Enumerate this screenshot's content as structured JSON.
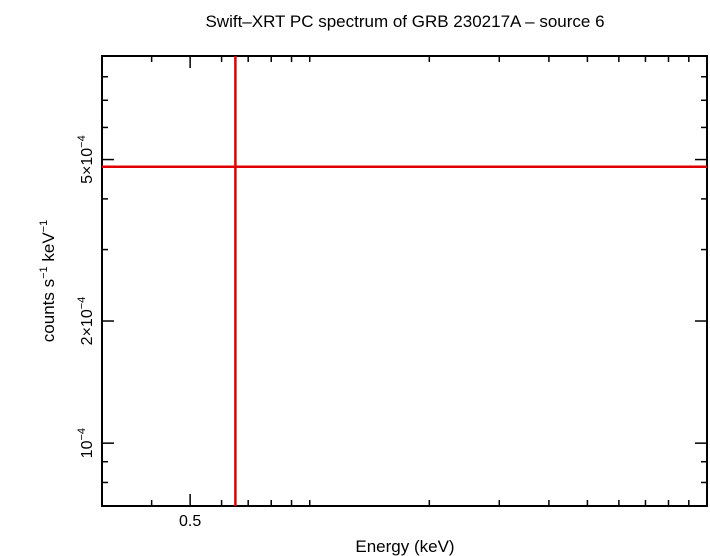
{
  "chart_data": {
    "type": "scatter",
    "title": "Swift–XRT PC spectrum of GRB 230217A – source 6",
    "xlabel": "Energy (keV)",
    "ylabel_main": "counts s",
    "ylabel_sup1": "−1",
    "ylabel_mid": " keV",
    "ylabel_sup2": "−1",
    "x_scale": "log",
    "y_scale": "log",
    "xlim": [
      0.3,
      10
    ],
    "ylim": [
      7e-05,
      0.0009
    ],
    "x_ticks": [
      {
        "value": 0.5,
        "label": "0.5"
      }
    ],
    "y_ticks": [
      {
        "value": 0.0001,
        "mant": "",
        "exp": "−4"
      },
      {
        "value": 0.0002,
        "mant": "2×",
        "exp": "−4"
      },
      {
        "value": 0.0005,
        "mant": "5×",
        "exp": "−4"
      }
    ],
    "series": [
      {
        "color": "#e00000",
        "points": [
          {
            "x": 0.65,
            "y": 0.00048
          }
        ]
      }
    ],
    "grid": false
  }
}
